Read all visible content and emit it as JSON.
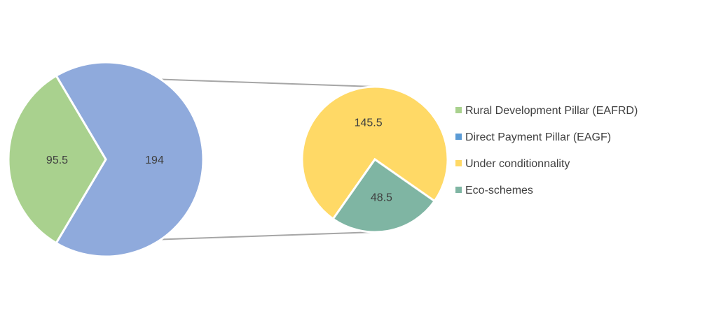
{
  "chart_data": {
    "type": "pie",
    "variant": "pie-of-pie",
    "title": "",
    "main_pie": {
      "slices": [
        {
          "label": "Rural Development Pillar (EAFRD)",
          "value": 95.5,
          "value_label": "95.5",
          "color": "#a9d18e"
        },
        {
          "label": "Direct Payment Pillar (EAGF)",
          "value": 194,
          "value_label": "194",
          "color": "#8faadc"
        }
      ]
    },
    "secondary_pie": {
      "breaks_down": "Direct Payment Pillar (EAGF)",
      "slices": [
        {
          "label": "Under conditionnality",
          "value": 145.5,
          "value_label": "145.5",
          "color": "#ffd966"
        },
        {
          "label": "Eco-schemes",
          "value": 48.5,
          "value_label": "48.5",
          "color": "#7fb5a3"
        }
      ]
    },
    "connector_color": "#a6a6a6",
    "legend": {
      "position": "right",
      "entries": [
        {
          "label": "Rural Development Pillar (EAFRD)",
          "color": "#a9d18e"
        },
        {
          "label": "Direct Payment Pillar (EAGF)",
          "color": "#5b9bd5"
        },
        {
          "label": "Under conditionnality",
          "color": "#ffd966"
        },
        {
          "label": "Eco-schemes",
          "color": "#7fb5a3"
        }
      ]
    }
  }
}
